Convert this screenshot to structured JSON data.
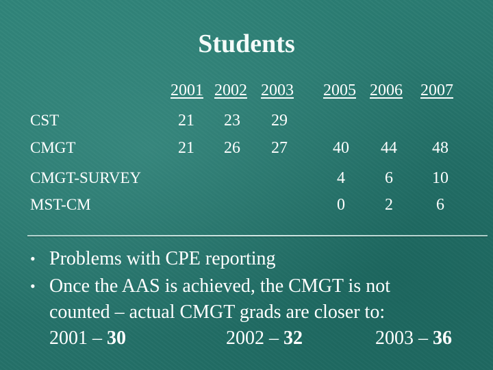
{
  "title": "Students",
  "table": {
    "years": [
      "2001",
      "2002",
      "2003",
      "2005",
      "2006",
      "2007"
    ],
    "rows": [
      {
        "label": "CST",
        "values": [
          "21",
          "23",
          "29",
          "",
          "",
          ""
        ]
      },
      {
        "label": "CMGT",
        "values": [
          "21",
          "26",
          "27",
          "40",
          "44",
          "48"
        ]
      },
      {
        "label": "CMGT-SURVEY",
        "values": [
          "",
          "",
          "",
          "4",
          "6",
          "10"
        ]
      },
      {
        "label": "MST-CM",
        "values": [
          "",
          "",
          "",
          "0",
          "2",
          "6"
        ]
      }
    ]
  },
  "bullets": [
    {
      "text": "Problems with CPE reporting"
    },
    {
      "line1": "Once the AAS is achieved, the CMGT is not",
      "line2": "counted – actual CMGT grads are closer to:"
    }
  ],
  "bullet_glyph": "•",
  "grads": [
    {
      "year": "2001",
      "sep": " – ",
      "value": "30"
    },
    {
      "year": "2002",
      "sep": " – ",
      "value": "32"
    },
    {
      "year": "2003",
      "sep": " – ",
      "value": "36"
    }
  ],
  "colors": {
    "background": "#2a7a70",
    "text": "#ffffff"
  }
}
